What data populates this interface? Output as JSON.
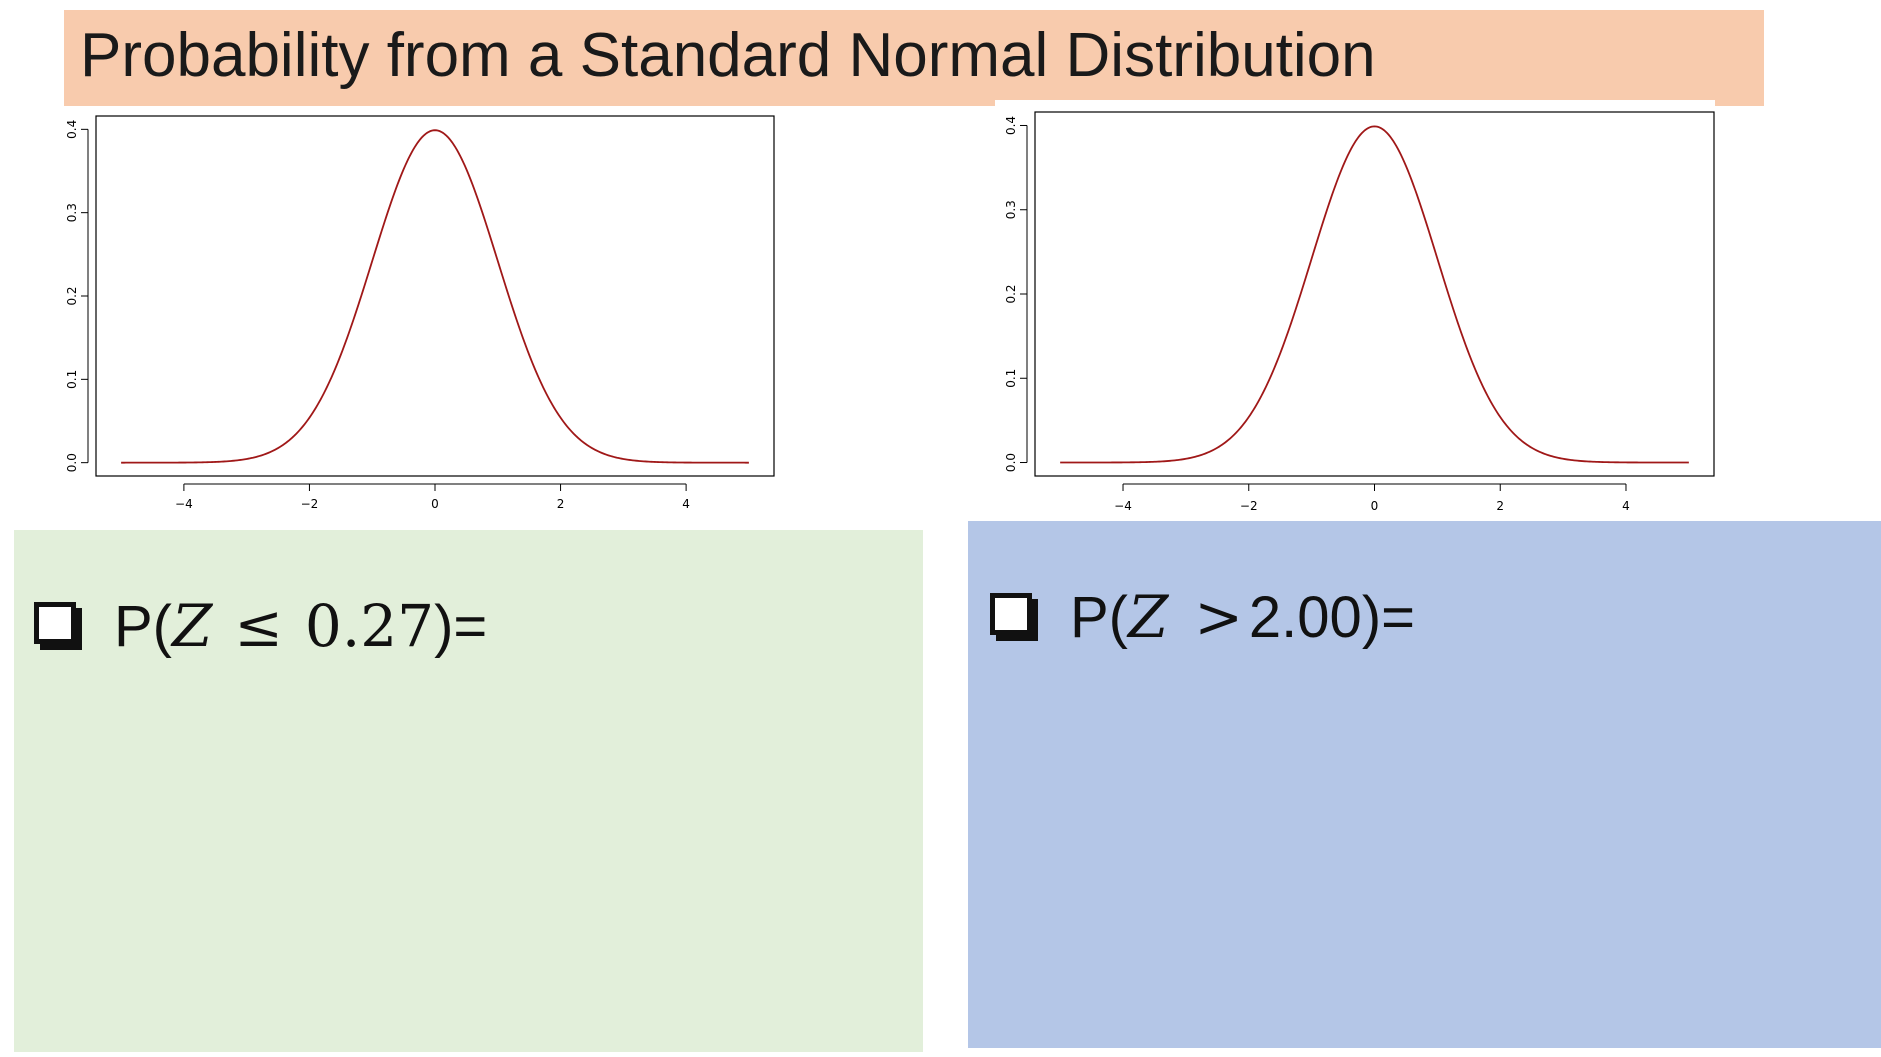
{
  "slide": {
    "title": "Probability from a Standard Normal Distribution",
    "colors": {
      "title_bg": "#f8cbad",
      "left_panel_bg": "#e2efda",
      "right_panel_bg": "#b4c6e7",
      "curve": "#a01818"
    }
  },
  "chart_data": [
    {
      "type": "line",
      "title": "",
      "xlabel": "",
      "ylabel": "",
      "xlim": [
        -5,
        5
      ],
      "ylim": [
        0,
        0.4
      ],
      "xticks": [
        "-4",
        "-2",
        "0",
        "2",
        "4"
      ],
      "yticks": [
        "0.0",
        "0.1",
        "0.2",
        "0.3",
        "0.4"
      ],
      "grid": false,
      "series": [
        {
          "x": [
            -5,
            -4.5,
            -4,
            -3.5,
            -3,
            -2.5,
            -2,
            -1.5,
            -1,
            -0.5,
            0,
            0.5,
            1,
            1.5,
            2,
            2.5,
            3,
            3.5,
            4,
            4.5,
            5
          ],
          "y": [
            1.5e-06,
            1.6e-05,
            0.000134,
            0.000873,
            0.00443,
            0.01753,
            0.05399,
            0.12952,
            0.24197,
            0.35207,
            0.39894,
            0.35207,
            0.24197,
            0.12952,
            0.05399,
            0.01753,
            0.00443,
            0.000873,
            0.000134,
            1.6e-05,
            1.5e-06
          ]
        }
      ]
    },
    {
      "type": "line",
      "title": "",
      "xlabel": "",
      "ylabel": "",
      "xlim": [
        -5,
        5
      ],
      "ylim": [
        0,
        0.4
      ],
      "xticks": [
        "-4",
        "-2",
        "0",
        "2",
        "4"
      ],
      "yticks": [
        "0.0",
        "0.1",
        "0.2",
        "0.3",
        "0.4"
      ],
      "grid": false,
      "series": [
        {
          "x": [
            -5,
            -4.5,
            -4,
            -3.5,
            -3,
            -2.5,
            -2,
            -1.5,
            -1,
            -0.5,
            0,
            0.5,
            1,
            1.5,
            2,
            2.5,
            3,
            3.5,
            4,
            4.5,
            5
          ],
          "y": [
            1.5e-06,
            1.6e-05,
            0.000134,
            0.000873,
            0.00443,
            0.01753,
            0.05399,
            0.12952,
            0.24197,
            0.35207,
            0.39894,
            0.35207,
            0.24197,
            0.12952,
            0.05399,
            0.01753,
            0.00443,
            0.000873,
            0.000134,
            1.6e-05,
            1.5e-06
          ]
        }
      ]
    }
  ],
  "questions": {
    "left": {
      "icon": "checkbox-icon",
      "prefix": "P(",
      "variable": "Z",
      "relation": "≤",
      "value": "0.27",
      "suffix": ")="
    },
    "right": {
      "icon": "checkbox-icon",
      "prefix": "P(",
      "variable": "Z",
      "relation": ">",
      "value": "2.00",
      "suffix": ")="
    }
  }
}
